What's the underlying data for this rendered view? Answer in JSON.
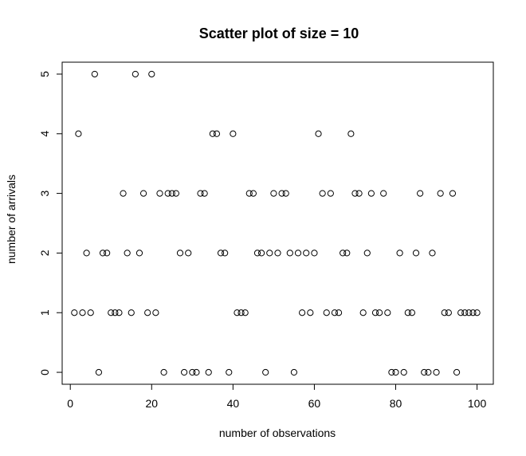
{
  "chart_data": {
    "type": "scatter",
    "title": "Scatter plot of size = 10",
    "xlabel": "number of observations",
    "ylabel": "number of arrivals",
    "xlim": [
      -2,
      104
    ],
    "ylim": [
      -0.2,
      5.2
    ],
    "xticks": [
      "0",
      "20",
      "40",
      "60",
      "80",
      "100"
    ],
    "yticks": [
      "0",
      "1",
      "2",
      "3",
      "4",
      "5"
    ],
    "grid": false,
    "marker": "open-circle",
    "marker_color": "#000000",
    "x": [
      1,
      2,
      3,
      4,
      5,
      6,
      7,
      8,
      9,
      10,
      11,
      12,
      13,
      14,
      15,
      16,
      17,
      18,
      19,
      20,
      21,
      22,
      23,
      24,
      25,
      26,
      27,
      28,
      29,
      30,
      31,
      32,
      33,
      34,
      35,
      36,
      37,
      38,
      39,
      40,
      41,
      42,
      43,
      44,
      45,
      46,
      47,
      48,
      49,
      50,
      51,
      52,
      53,
      54,
      55,
      56,
      57,
      58,
      59,
      60,
      61,
      62,
      63,
      64,
      65,
      66,
      67,
      68,
      69,
      70,
      71,
      72,
      73,
      74,
      75,
      76,
      77,
      78,
      79,
      80,
      81,
      82,
      83,
      84,
      85,
      86,
      87,
      88,
      89,
      90,
      91,
      92,
      93,
      94,
      95,
      96,
      97,
      98,
      99,
      100
    ],
    "y": [
      1,
      4,
      1,
      2,
      1,
      5,
      0,
      2,
      2,
      1,
      1,
      1,
      3,
      2,
      1,
      5,
      2,
      3,
      1,
      5,
      1,
      3,
      0,
      3,
      3,
      3,
      2,
      0,
      2,
      0,
      0,
      3,
      3,
      0,
      4,
      4,
      2,
      2,
      0,
      4,
      1,
      1,
      1,
      3,
      3,
      2,
      2,
      0,
      2,
      3,
      2,
      3,
      3,
      2,
      0,
      2,
      1,
      2,
      1,
      2,
      4,
      3,
      1,
      3,
      1,
      1,
      2,
      2,
      4,
      3,
      3,
      1,
      2,
      3,
      1,
      1,
      3,
      1,
      0,
      0,
      2,
      0,
      1,
      1,
      2,
      3,
      0,
      0,
      2,
      0,
      3,
      1,
      1,
      3,
      0,
      1,
      1,
      1,
      1,
      1
    ]
  }
}
